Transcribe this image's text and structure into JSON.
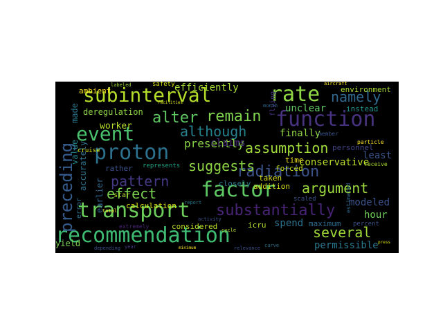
{
  "wordcloud": {
    "background": "#000000",
    "words": [
      {
        "text": "recommendation",
        "color": "#3fbc73"
      },
      {
        "text": "transport",
        "color": "#6ccd5a"
      },
      {
        "text": "factor",
        "color": "#5ec962"
      },
      {
        "text": "function",
        "color": "#46327e"
      },
      {
        "text": "subinterval",
        "color": "#b5de2b"
      },
      {
        "text": "rate",
        "color": "#8fd744"
      },
      {
        "text": "proton",
        "color": "#2c728e"
      },
      {
        "text": "event",
        "color": "#4ac16d"
      },
      {
        "text": "preceding",
        "color": "#365c8d"
      },
      {
        "text": "substantially",
        "color": "#482475"
      },
      {
        "text": "radiation",
        "color": "#3b528b"
      },
      {
        "text": "assumption",
        "color": "#a0da39"
      },
      {
        "text": "argument",
        "color": "#9bd93c"
      },
      {
        "text": "suggests",
        "color": "#8ed645"
      },
      {
        "text": "pattern",
        "color": "#443983"
      },
      {
        "text": "effect",
        "color": "#7ad151"
      },
      {
        "text": "although",
        "color": "#26828e"
      },
      {
        "text": "several",
        "color": "#9fda3a"
      },
      {
        "text": "alter",
        "color": "#5ec962"
      },
      {
        "text": "remain",
        "color": "#7fd34e"
      },
      {
        "text": "namely",
        "color": "#31688e"
      },
      {
        "text": "presently",
        "color": "#8bd646"
      },
      {
        "text": "conservative",
        "color": "#b8de29"
      },
      {
        "text": "modeled",
        "color": "#3b528b"
      },
      {
        "text": "hour",
        "color": "#6ece58"
      },
      {
        "text": "permissible",
        "color": "#2a788e"
      },
      {
        "text": "spend",
        "color": "#2c728e"
      },
      {
        "text": "least",
        "color": "#3b528b"
      },
      {
        "text": "finally",
        "color": "#90d743"
      },
      {
        "text": "claims",
        "color": "#472c7a"
      },
      {
        "text": "efficiently",
        "color": "#a5db36"
      },
      {
        "text": "unclear",
        "color": "#5ec962"
      },
      {
        "text": "deregulation",
        "color": "#8fd744"
      },
      {
        "text": "worker",
        "color": "#b5de2b"
      },
      {
        "text": "ambient",
        "color": "#fde725"
      },
      {
        "text": "yield",
        "color": "#7ad151"
      },
      {
        "text": "calculation",
        "color": "#dfe318"
      },
      {
        "text": "considered",
        "color": "#bddf26"
      },
      {
        "text": "icru",
        "color": "#b5de2b"
      },
      {
        "text": "maximum",
        "color": "#2f6c8e"
      },
      {
        "text": "percent",
        "color": "#3b528b"
      },
      {
        "text": "environment",
        "color": "#a8db34"
      },
      {
        "text": "instead",
        "color": "#1f948c"
      },
      {
        "text": "personnel",
        "color": "#414487"
      },
      {
        "text": "forced",
        "color": "#c8e020"
      },
      {
        "text": "taken",
        "color": "#dde318"
      },
      {
        "text": "addition",
        "color": "#d5e21a"
      },
      {
        "text": "time",
        "color": "#f1e51d"
      },
      {
        "text": "closely",
        "color": "#2a788e"
      },
      {
        "text": "scaled",
        "color": "#3b528b"
      },
      {
        "text": "made",
        "color": "#2a788e"
      },
      {
        "text": "value",
        "color": "#25858e"
      },
      {
        "text": "accurately",
        "color": "#2c728e"
      },
      {
        "text": "rather",
        "color": "#3b528b"
      },
      {
        "text": "represents",
        "color": "#21a585"
      },
      {
        "text": "error",
        "color": "#2d708e"
      },
      {
        "text": "earlier",
        "color": "#31688e"
      },
      {
        "text": "safety",
        "color": "#dde318"
      },
      {
        "text": "labeled",
        "color": "#9fda3a"
      },
      {
        "text": "aircraft",
        "color": "#fde725"
      },
      {
        "text": "receive",
        "color": "#addc30"
      },
      {
        "text": "member",
        "color": "#3b528b"
      },
      {
        "text": "particle",
        "color": "#fde725"
      },
      {
        "text": "flying",
        "color": "#46327e"
      },
      {
        "text": "month",
        "color": "#31688e"
      },
      {
        "text": "cruise",
        "color": "#dde318"
      },
      {
        "text": "star",
        "color": "#b5de2b"
      },
      {
        "text": "report",
        "color": "#2a788e"
      },
      {
        "text": "cycle",
        "color": "#b5de2b"
      },
      {
        "text": "extremely",
        "color": "#482475"
      },
      {
        "text": "estimated",
        "color": "#31688e"
      },
      {
        "text": "depending",
        "color": "#3b528b"
      },
      {
        "text": "year",
        "color": "#443983"
      },
      {
        "text": "minimum",
        "color": "#fde725"
      },
      {
        "text": "relevance",
        "color": "#3b528b"
      },
      {
        "text": "curve",
        "color": "#2c728e"
      },
      {
        "text": "total",
        "color": "#fde725"
      },
      {
        "text": "facilities",
        "color": "#dde318"
      },
      {
        "text": "activity",
        "color": "#3b528b"
      },
      {
        "text": "press",
        "color": "#dde318"
      }
    ]
  }
}
